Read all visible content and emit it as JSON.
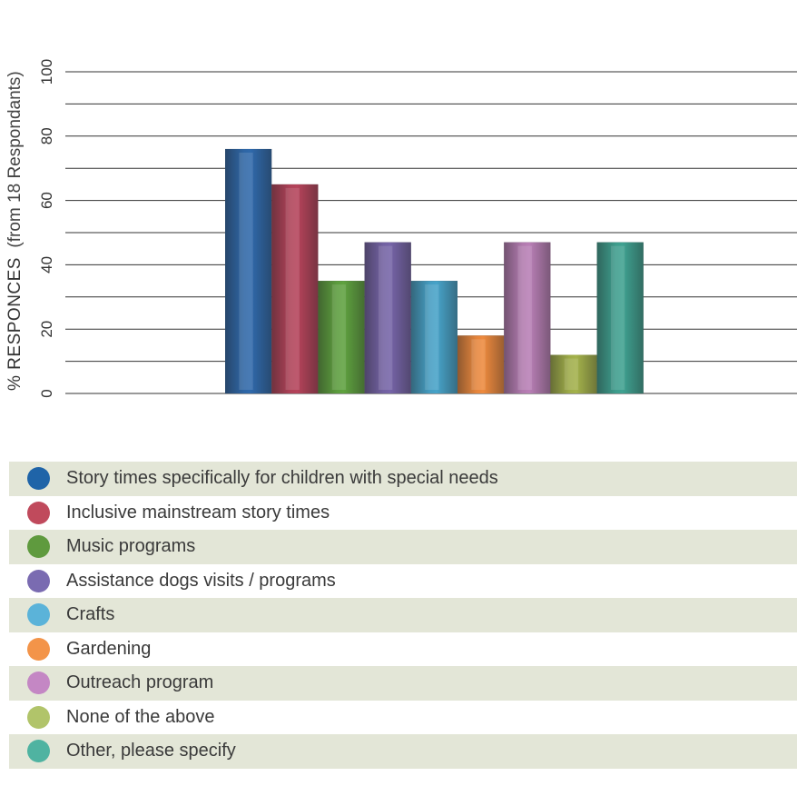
{
  "chart_data": {
    "type": "bar",
    "title": "",
    "xlabel": "",
    "ylabel_strong": "% RESPONCES",
    "ylabel_light": "(from 18 Respondants)",
    "ylim": [
      0,
      100
    ],
    "yticks": [
      0,
      20,
      40,
      60,
      80,
      100
    ],
    "grid": true,
    "legend_position": "bottom",
    "categories": [
      "Story times specifically for children with special needs",
      "Inclusive mainstream story times",
      "Music programs",
      "Assistance dogs visits / programs",
      "Crafts",
      "Gardening",
      "Outreach program",
      "None of the above",
      "Other, please specify"
    ],
    "values": [
      76,
      65,
      35,
      47,
      35,
      18,
      47,
      12,
      47
    ],
    "colors": [
      "#2f69ab",
      "#b5435a",
      "#5fa23f",
      "#7664a8",
      "#47a3c9",
      "#ee8a3e",
      "#b97fb6",
      "#a4b24b",
      "#3fa291"
    ],
    "legend_colors": [
      "#1f64a8",
      "#c04a5c",
      "#5f9a3e",
      "#7a6bb1",
      "#5bb3d9",
      "#f39449",
      "#c487c4",
      "#b1c46a",
      "#4fb3a1"
    ]
  }
}
